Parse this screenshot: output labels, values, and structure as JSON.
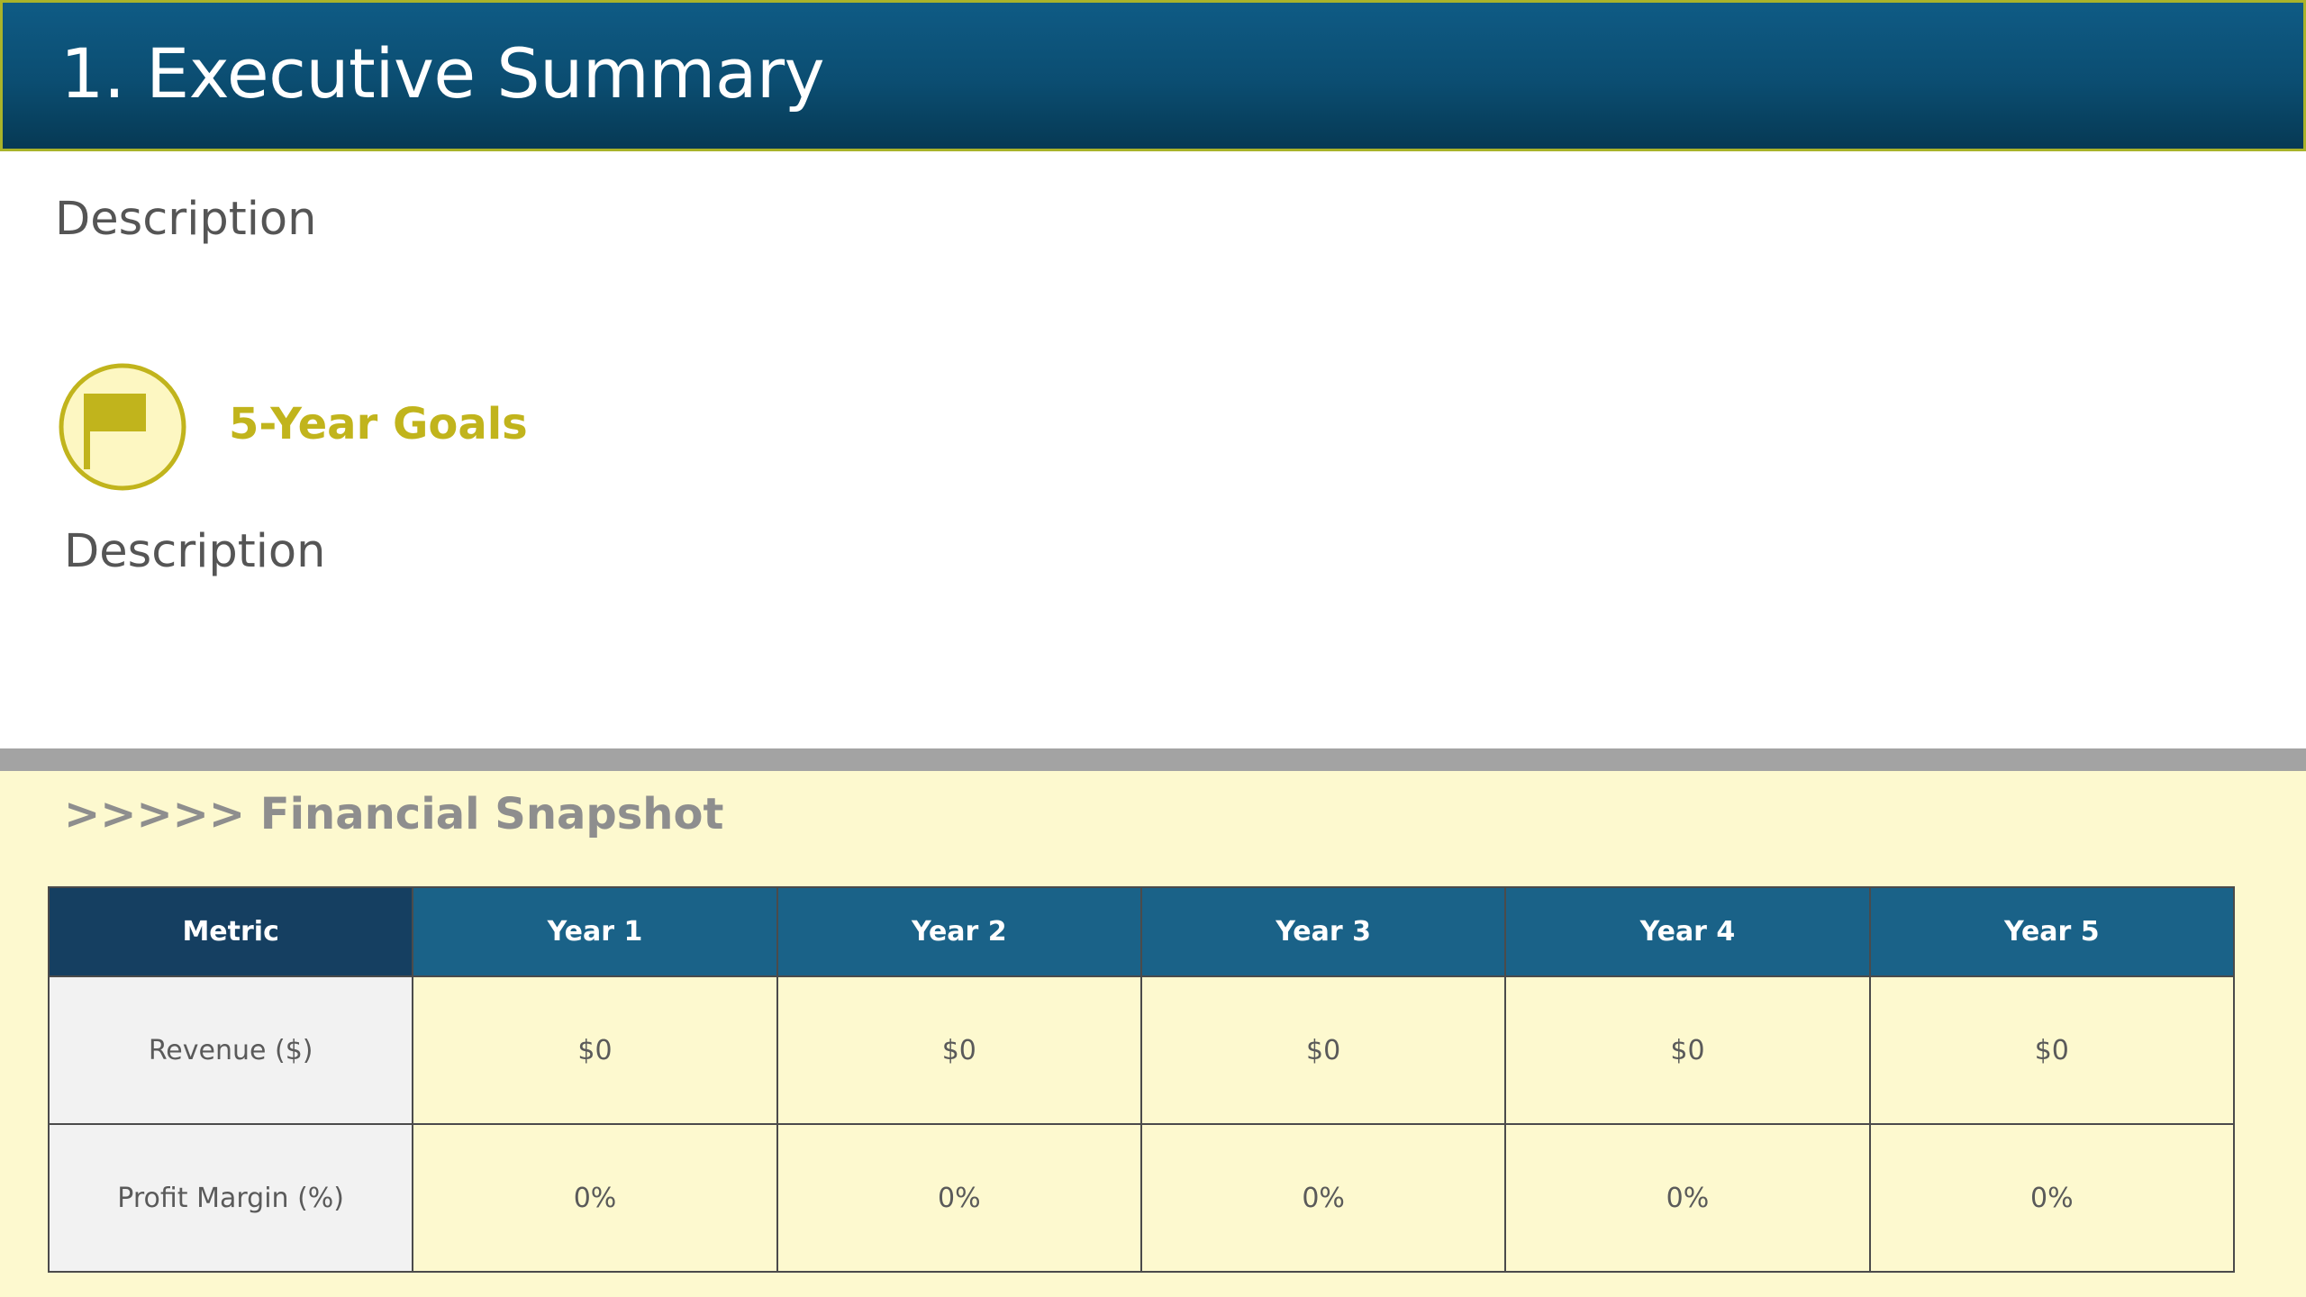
{
  "header": {
    "title": "1. Executive Summary"
  },
  "overview": {
    "description": "Description"
  },
  "goals": {
    "icon": "flag-icon",
    "title": "5-Year Goals",
    "description": "Description"
  },
  "snapshot": {
    "title": ">>>>> Financial Snapshot",
    "columns": [
      "Metric",
      "Year 1",
      "Year 2",
      "Year 3",
      "Year 4",
      "Year 5"
    ],
    "rows": [
      [
        "Revenue ($)",
        "$0",
        "$0",
        "$0",
        "$0",
        "$0"
      ],
      [
        "Profit Margin (%)",
        "0%",
        "0%",
        "0%",
        "0%",
        "0%"
      ]
    ]
  },
  "colors": {
    "header_bg": "#0b4d71",
    "header_border": "#a9b32a",
    "accent_gold": "#c1b41c",
    "icon_bg": "#fdf7c2",
    "table_header": "#1a6288",
    "table_header_metric": "#153f61",
    "snapshot_bg": "#fdf9cf",
    "divider": "#a3a3a3"
  }
}
